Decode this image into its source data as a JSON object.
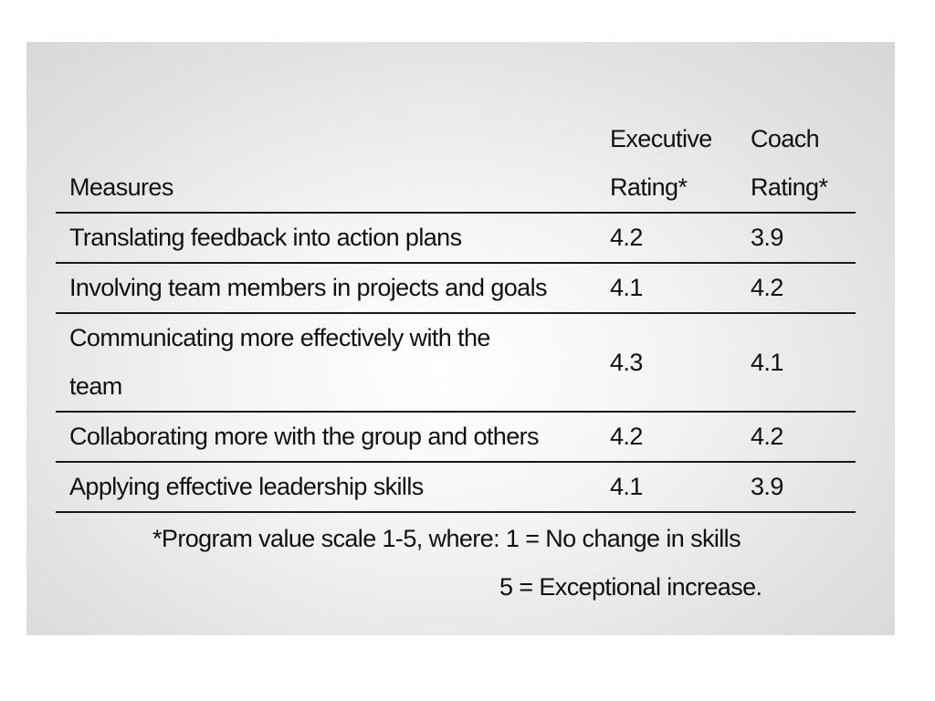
{
  "table": {
    "headers": {
      "measure": "Measures",
      "executive": [
        "Executive",
        "Rating*"
      ],
      "coach": [
        "Coach",
        "Rating*"
      ]
    },
    "rows": [
      {
        "measure": "Translating feedback into action plans",
        "executive": "4.2",
        "coach": "3.9"
      },
      {
        "measure": "Involving team members in projects and goals",
        "executive": "4.1",
        "coach": "4.2"
      },
      {
        "measure": "Communicating more effectively with the team",
        "executive": "4.3",
        "coach": "4.1"
      },
      {
        "measure": "Collaborating more with the group and others",
        "executive": "4.2",
        "coach": "4.2"
      },
      {
        "measure": "Applying effective leadership skills",
        "executive": "4.1",
        "coach": "3.9"
      }
    ]
  },
  "footnote": {
    "line1": "*Program value scale 1-5, where: 1 = No change in skills",
    "line2": "5 = Exceptional increase."
  }
}
